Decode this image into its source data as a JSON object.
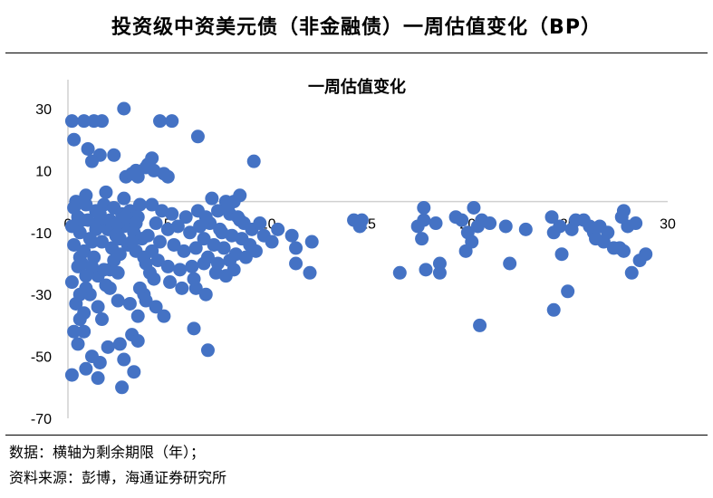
{
  "figure": {
    "title": "投资级中资美元债（非金融债）一周估值变化（BP）",
    "notes": [
      "数据：横轴为剩余期限（年）；",
      "资料来源：彭博，海通证券研究所"
    ]
  },
  "chart_data": {
    "type": "scatter",
    "title": "一周估值变化",
    "xlabel": "",
    "ylabel": "",
    "xlim": [
      0,
      30
    ],
    "ylim": [
      -70,
      30
    ],
    "xticks": [
      0,
      5,
      10,
      15,
      20,
      25,
      30
    ],
    "yticks": [
      30,
      10,
      -10,
      -30,
      -50,
      -70
    ],
    "grid": false,
    "legend": "none",
    "marker_color": "#4472C4",
    "points": [
      [
        0.2,
        26
      ],
      [
        0.8,
        26
      ],
      [
        1.3,
        26
      ],
      [
        1.7,
        26
      ],
      [
        0.3,
        20
      ],
      [
        1.0,
        17
      ],
      [
        1.6,
        15
      ],
      [
        1.2,
        13
      ],
      [
        2.3,
        15
      ],
      [
        0.7,
        -6
      ],
      [
        1.2,
        -13
      ],
      [
        0.6,
        -18
      ],
      [
        0.2,
        -26
      ],
      [
        0.5,
        -21
      ],
      [
        0.9,
        -24
      ],
      [
        1.5,
        -24
      ],
      [
        0.4,
        -33
      ],
      [
        0.6,
        -38
      ],
      [
        0.8,
        -42
      ],
      [
        0.5,
        -46
      ],
      [
        1.2,
        -50
      ],
      [
        0.9,
        -54
      ],
      [
        0.2,
        -56
      ],
      [
        1.5,
        -57
      ],
      [
        1.6,
        -52
      ],
      [
        1.1,
        -30
      ],
      [
        0.9,
        -28
      ],
      [
        0.6,
        -30
      ],
      [
        0.3,
        -42
      ],
      [
        2.0,
        -47
      ],
      [
        1.7,
        -38
      ],
      [
        2.5,
        -32
      ],
      [
        2.1,
        -28
      ],
      [
        2.5,
        -23
      ],
      [
        2.1,
        -22
      ],
      [
        1.9,
        -27
      ],
      [
        1.5,
        -34
      ],
      [
        0.8,
        -36
      ],
      [
        0.4,
        0
      ],
      [
        0.9,
        -1
      ],
      [
        1.4,
        -3
      ],
      [
        1.8,
        -1
      ],
      [
        2.3,
        -2
      ],
      [
        2.7,
        -4
      ],
      [
        3.1,
        -3
      ],
      [
        3.5,
        -5
      ],
      [
        0.2,
        -8
      ],
      [
        0.6,
        -10
      ],
      [
        1.1,
        -12
      ],
      [
        1.5,
        -7
      ],
      [
        2.0,
        -9
      ],
      [
        2.4,
        -11
      ],
      [
        2.8,
        -8
      ],
      [
        3.3,
        -10
      ],
      [
        3.7,
        -12
      ],
      [
        0.3,
        -14
      ],
      [
        0.8,
        -16
      ],
      [
        1.3,
        -18
      ],
      [
        1.7,
        -13
      ],
      [
        2.2,
        -15
      ],
      [
        2.6,
        -17
      ],
      [
        3.0,
        -14
      ],
      [
        3.4,
        -16
      ],
      [
        3.8,
        -18
      ],
      [
        0.5,
        -5
      ],
      [
        1.0,
        -6
      ],
      [
        1.6,
        -4
      ],
      [
        2.1,
        -6
      ],
      [
        2.5,
        -7
      ],
      [
        2.9,
        -5
      ],
      [
        3.4,
        -7
      ],
      [
        0.7,
        -20
      ],
      [
        1.2,
        -21
      ],
      [
        1.8,
        -22
      ],
      [
        2.3,
        -19
      ],
      [
        0.9,
        2
      ],
      [
        1.9,
        3
      ],
      [
        2.8,
        1
      ],
      [
        3.6,
        -1
      ],
      [
        0.3,
        -2
      ],
      [
        1.4,
        -9
      ],
      [
        2.6,
        -12
      ],
      [
        3.2,
        -13
      ],
      [
        2.8,
        30
      ],
      [
        3.4,
        10
      ],
      [
        3.9,
        11
      ],
      [
        3.5,
        8
      ],
      [
        4.0,
        12
      ],
      [
        4.3,
        10
      ],
      [
        4.2,
        14
      ],
      [
        5.2,
        26
      ],
      [
        4.6,
        26
      ],
      [
        4.8,
        9
      ],
      [
        5.0,
        8
      ],
      [
        2.9,
        8
      ],
      [
        3.2,
        9
      ],
      [
        4.2,
        -1
      ],
      [
        4.7,
        -3
      ],
      [
        5.2,
        -4
      ],
      [
        5.9,
        -5
      ],
      [
        6.5,
        -3
      ],
      [
        4.4,
        -7
      ],
      [
        5.0,
        -9
      ],
      [
        5.5,
        -8
      ],
      [
        6.1,
        -10
      ],
      [
        4.0,
        -11
      ],
      [
        4.6,
        -13
      ],
      [
        5.3,
        -14
      ],
      [
        5.8,
        -16
      ],
      [
        6.4,
        -15
      ],
      [
        4.5,
        -19
      ],
      [
        5.0,
        -21
      ],
      [
        5.6,
        -22
      ],
      [
        6.2,
        -21
      ],
      [
        6.8,
        -20
      ],
      [
        4.3,
        -25
      ],
      [
        5.1,
        -26
      ],
      [
        5.7,
        -28
      ],
      [
        6.4,
        -28
      ],
      [
        6.9,
        -30
      ],
      [
        3.9,
        -32
      ],
      [
        4.4,
        -34
      ],
      [
        4.8,
        -37
      ],
      [
        3.1,
        -33
      ],
      [
        3.5,
        -37
      ],
      [
        3.2,
        -43
      ],
      [
        3.5,
        -45
      ],
      [
        2.8,
        -51
      ],
      [
        3.3,
        -55
      ],
      [
        2.6,
        -46
      ],
      [
        2.7,
        -60
      ],
      [
        3.8,
        -30
      ],
      [
        4.1,
        -23
      ],
      [
        3.6,
        -28
      ],
      [
        3.9,
        -20
      ],
      [
        4.2,
        -16
      ],
      [
        6.6,
        -8
      ],
      [
        7.1,
        -7
      ],
      [
        7.6,
        -9
      ],
      [
        6.8,
        -12
      ],
      [
        7.3,
        -14
      ],
      [
        7.8,
        -15
      ],
      [
        7.0,
        -18
      ],
      [
        7.5,
        -20
      ],
      [
        8.1,
        -19
      ],
      [
        7.4,
        -23
      ],
      [
        7.9,
        -24
      ],
      [
        6.3,
        -25
      ],
      [
        7.2,
        1
      ],
      [
        7.9,
        0
      ],
      [
        8.3,
        0
      ],
      [
        8.6,
        2
      ],
      [
        7.5,
        -3
      ],
      [
        8.1,
        -4
      ],
      [
        8.5,
        -5
      ],
      [
        8.8,
        -7
      ],
      [
        8.2,
        -11
      ],
      [
        8.7,
        -12
      ],
      [
        9.1,
        -14
      ],
      [
        8.4,
        -17
      ],
      [
        8.9,
        -18
      ],
      [
        9.4,
        -16
      ],
      [
        9.8,
        -11
      ],
      [
        10.2,
        -13
      ],
      [
        8.0,
        -2
      ],
      [
        8.6,
        -6
      ],
      [
        9.2,
        -9
      ],
      [
        9.6,
        -7
      ],
      [
        8.3,
        -22
      ],
      [
        9.3,
        13
      ],
      [
        6.5,
        21
      ],
      [
        6.3,
        -41
      ],
      [
        7.0,
        -48
      ],
      [
        7.7,
        -10
      ],
      [
        6.9,
        -5
      ],
      [
        10.5,
        -9
      ],
      [
        11.2,
        -11
      ],
      [
        11.4,
        -15
      ],
      [
        11.4,
        -20
      ],
      [
        12.1,
        -23
      ],
      [
        12.2,
        -13
      ],
      [
        14.3,
        -6
      ],
      [
        14.6,
        -8
      ],
      [
        14.7,
        -6
      ],
      [
        16.6,
        -23
      ],
      [
        17.5,
        -8
      ],
      [
        17.7,
        -12
      ],
      [
        17.8,
        -2
      ],
      [
        17.8,
        -6
      ],
      [
        17.9,
        -22
      ],
      [
        18.4,
        -7
      ],
      [
        18.6,
        -20
      ],
      [
        18.6,
        -23
      ],
      [
        19.4,
        -5
      ],
      [
        19.7,
        -6
      ],
      [
        19.9,
        -16
      ],
      [
        20.0,
        -10
      ],
      [
        20.2,
        -13
      ],
      [
        20.3,
        -2
      ],
      [
        20.5,
        -8
      ],
      [
        20.6,
        -40
      ],
      [
        20.7,
        -6
      ],
      [
        21.1,
        -7
      ],
      [
        21.9,
        -8
      ],
      [
        22.1,
        -20
      ],
      [
        22.9,
        -9
      ],
      [
        24.2,
        -5
      ],
      [
        24.3,
        -10
      ],
      [
        24.3,
        -35
      ],
      [
        24.6,
        -8
      ],
      [
        24.7,
        -17
      ],
      [
        25.0,
        -29
      ],
      [
        25.2,
        -9
      ],
      [
        25.4,
        -6
      ],
      [
        25.8,
        -6
      ],
      [
        26.1,
        -8
      ],
      [
        26.3,
        -10
      ],
      [
        26.6,
        -8
      ],
      [
        26.8,
        -13
      ],
      [
        27.0,
        -10
      ],
      [
        27.3,
        -15
      ],
      [
        27.6,
        -15
      ],
      [
        27.8,
        -16
      ],
      [
        28.0,
        -8
      ],
      [
        28.2,
        -23
      ],
      [
        28.4,
        -7
      ],
      [
        28.6,
        -19
      ],
      [
        28.9,
        -17
      ],
      [
        27.8,
        -3
      ],
      [
        27.7,
        -5
      ],
      [
        26.4,
        -12
      ]
    ]
  }
}
